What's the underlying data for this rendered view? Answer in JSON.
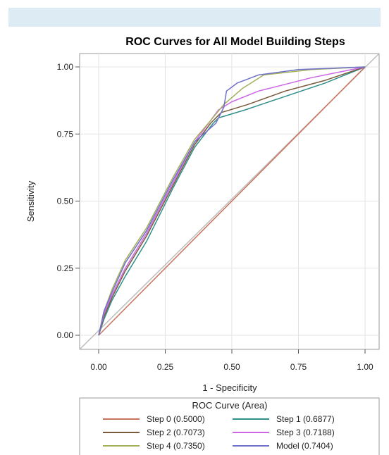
{
  "chart_data": {
    "type": "line",
    "title": "ROC Curves for All Model Building Steps",
    "xlabel": "1 - Specificity",
    "ylabel": "Sensitivity",
    "xlim": [
      0,
      1
    ],
    "ylim": [
      0,
      1
    ],
    "xticks": [
      "0.00",
      "0.25",
      "0.50",
      "0.75",
      "1.00"
    ],
    "yticks": [
      "0.00",
      "0.25",
      "0.50",
      "0.75",
      "1.00"
    ],
    "grid": true,
    "legend": {
      "title": "ROC Curve (Area)",
      "position": "bottom"
    },
    "series": [
      {
        "name": "Step 0",
        "label": "Step 0  (0.5000)",
        "color": "#c8735d",
        "x": [
          0,
          1
        ],
        "y": [
          0,
          1
        ]
      },
      {
        "name": "Step 1",
        "label": "Step 1  (0.6877)",
        "color": "#2f8f8b",
        "x": [
          0,
          0.02,
          0.05,
          0.1,
          0.18,
          0.28,
          0.36,
          0.43,
          0.45,
          0.55,
          0.7,
          0.85,
          1
        ],
        "y": [
          0,
          0.06,
          0.13,
          0.22,
          0.35,
          0.55,
          0.7,
          0.79,
          0.81,
          0.84,
          0.89,
          0.94,
          1
        ]
      },
      {
        "name": "Step 2",
        "label": "Step 2  (0.7073)",
        "color": "#7a5a3c",
        "x": [
          0,
          0.02,
          0.05,
          0.1,
          0.18,
          0.28,
          0.36,
          0.42,
          0.46,
          0.56,
          0.7,
          0.85,
          1
        ],
        "y": [
          0,
          0.07,
          0.14,
          0.24,
          0.37,
          0.56,
          0.71,
          0.79,
          0.83,
          0.86,
          0.91,
          0.95,
          1
        ]
      },
      {
        "name": "Step 3",
        "label": "Step 3  (0.7188)",
        "color": "#cc66e6",
        "x": [
          0,
          0.02,
          0.05,
          0.1,
          0.18,
          0.28,
          0.36,
          0.42,
          0.45,
          0.5,
          0.6,
          0.8,
          1
        ],
        "y": [
          0,
          0.08,
          0.15,
          0.25,
          0.38,
          0.57,
          0.72,
          0.8,
          0.84,
          0.87,
          0.91,
          0.96,
          1
        ]
      },
      {
        "name": "Step 4",
        "label": "Step 4  (0.7350)",
        "color": "#a3b05a",
        "x": [
          0,
          0.02,
          0.05,
          0.1,
          0.18,
          0.28,
          0.36,
          0.42,
          0.47,
          0.54,
          0.62,
          0.8,
          1
        ],
        "y": [
          0,
          0.09,
          0.17,
          0.28,
          0.4,
          0.59,
          0.73,
          0.8,
          0.86,
          0.92,
          0.97,
          0.99,
          1
        ]
      },
      {
        "name": "Model",
        "label": "Model  (0.7404)",
        "color": "#6f70c9",
        "x": [
          0,
          0.02,
          0.05,
          0.1,
          0.18,
          0.28,
          0.36,
          0.44,
          0.47,
          0.48,
          0.52,
          0.6,
          0.75,
          1
        ],
        "y": [
          0,
          0.09,
          0.16,
          0.27,
          0.39,
          0.58,
          0.72,
          0.79,
          0.85,
          0.91,
          0.94,
          0.97,
          0.99,
          1
        ]
      }
    ]
  }
}
